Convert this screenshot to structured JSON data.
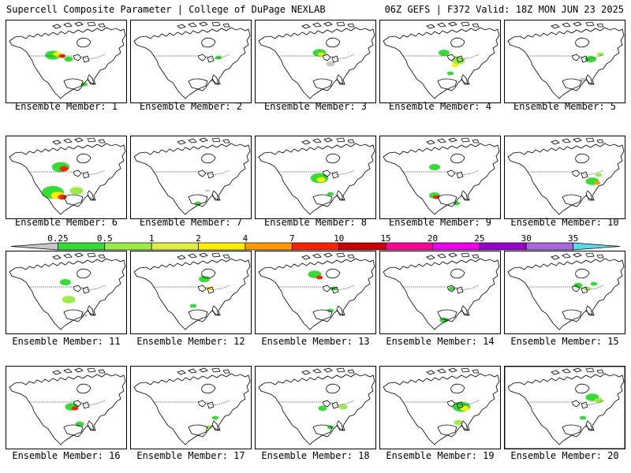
{
  "header": {
    "left": "Supercell Composite Parameter | College of DuPage NEXLAB",
    "right": "06Z GEFS | F372 Valid: 18Z MON JUN 23 2025"
  },
  "legend": {
    "ticks": [
      "0.25",
      "0.5",
      "1",
      "2",
      "4",
      "7",
      "10",
      "15",
      "20",
      "25",
      "30",
      "35"
    ],
    "colors": [
      "#c8c8c8",
      "#33dd33",
      "#99ee44",
      "#e0f040",
      "#ffee00",
      "#ff9900",
      "#ff2200",
      "#cc0000",
      "#ff0099",
      "#ee00ee",
      "#9900cc",
      "#aa66dd",
      "#55ddee"
    ]
  },
  "members": [
    {
      "label": "Ensemble Member: 1"
    },
    {
      "label": "Ensemble Member: 2"
    },
    {
      "label": "Ensemble Member: 3"
    },
    {
      "label": "Ensemble Member: 4"
    },
    {
      "label": "Ensemble Member: 5"
    },
    {
      "label": "Ensemble Member: 6"
    },
    {
      "label": "Ensemble Member: 7"
    },
    {
      "label": "Ensemble Member: 8"
    },
    {
      "label": "Ensemble Member: 9"
    },
    {
      "label": "Ensemble Member: 10"
    },
    {
      "label": "Ensemble Member: 11"
    },
    {
      "label": "Ensemble Member: 12"
    },
    {
      "label": "Ensemble Member: 13"
    },
    {
      "label": "Ensemble Member: 14"
    },
    {
      "label": "Ensemble Member: 15"
    },
    {
      "label": "Ensemble Member: 16"
    },
    {
      "label": "Ensemble Member: 17"
    },
    {
      "label": "Ensemble Member: 18"
    },
    {
      "label": "Ensemble Member: 19"
    },
    {
      "label": "Ensemble Member: 20"
    }
  ]
}
